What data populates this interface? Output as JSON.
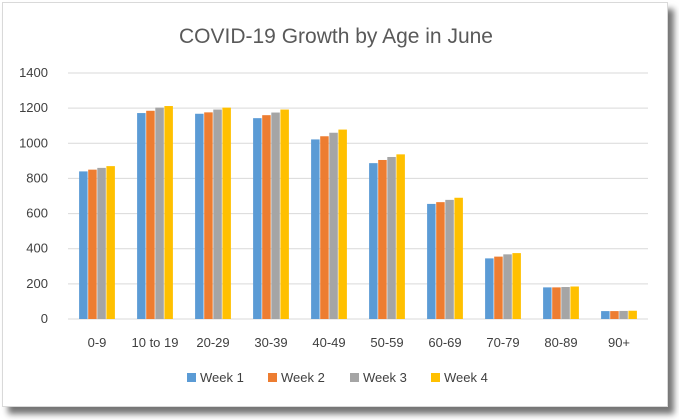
{
  "chart_data": {
    "type": "bar",
    "title": "COVID-19 Growth by Age in June",
    "xlabel": "",
    "ylabel": "",
    "ylim": [
      0,
      1400
    ],
    "yticks": [
      0,
      200,
      400,
      600,
      800,
      1000,
      1200,
      1400
    ],
    "grid": true,
    "legend": "bottom",
    "categories": [
      "0-9",
      "10 to 19",
      "20-29",
      "30-39",
      "40-49",
      "50-59",
      "60-69",
      "70-79",
      "80-89",
      "90+"
    ],
    "series": [
      {
        "name": "Week 1",
        "color": "#5b9bd5",
        "values": [
          840,
          1172,
          1168,
          1143,
          1022,
          887,
          655,
          345,
          180,
          45
        ]
      },
      {
        "name": "Week 2",
        "color": "#ed7d31",
        "values": [
          850,
          1185,
          1176,
          1160,
          1040,
          905,
          665,
          355,
          180,
          45
        ]
      },
      {
        "name": "Week 3",
        "color": "#a5a5a5",
        "values": [
          860,
          1203,
          1192,
          1175,
          1060,
          922,
          678,
          368,
          182,
          46
        ]
      },
      {
        "name": "Week 4",
        "color": "#ffc000",
        "values": [
          870,
          1212,
          1203,
          1192,
          1078,
          937,
          690,
          375,
          185,
          47
        ]
      }
    ]
  }
}
